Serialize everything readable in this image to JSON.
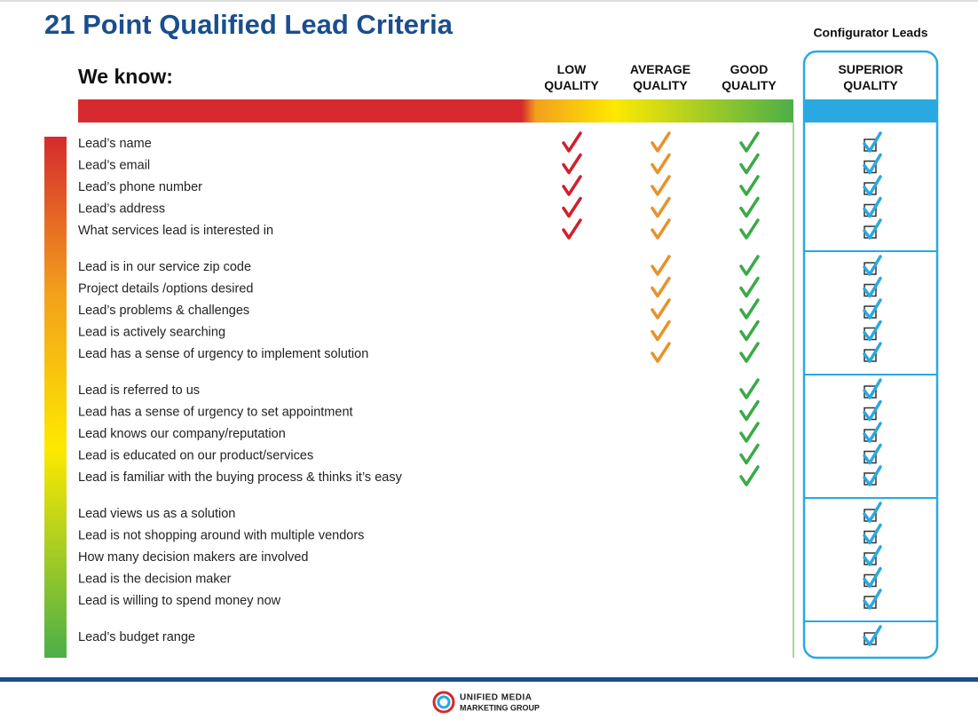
{
  "header": {
    "title": "21 Point Qualified Lead Criteria",
    "note": "Configurator Leads",
    "we_know": "We know:"
  },
  "columns": [
    {
      "label": "LOW QUALITY",
      "color": "#d0202e"
    },
    {
      "label": "AVERAGE QUALITY",
      "color": "#e8922a"
    },
    {
      "label": "GOOD QUALITY",
      "color": "#3aaa48"
    },
    {
      "label": "SUPERIOR QUALITY",
      "color": "#29a9e0"
    }
  ],
  "groups": [
    {
      "rows": [
        "Lead’s name",
        "Lead’s email",
        "Lead’s phone number",
        "Lead’s address",
        "What services lead is interested in"
      ],
      "checks": [
        true,
        true,
        true,
        true
      ]
    },
    {
      "rows": [
        "Lead is in our service zip code",
        "Project details /options desired",
        "Lead’s problems & challenges",
        "Lead is actively searching",
        "Lead has a sense of urgency to implement solution"
      ],
      "checks": [
        false,
        true,
        true,
        true
      ]
    },
    {
      "rows": [
        "Lead is referred to us",
        "Lead has a sense of urgency to set appointment",
        "Lead knows our company/reputation",
        "Lead is educated on our product/services",
        "Lead is familiar with the buying process & thinks it’s easy"
      ],
      "checks": [
        false,
        false,
        true,
        true
      ]
    },
    {
      "rows": [
        "Lead views us as a solution",
        "Lead is not shopping around with multiple vendors",
        "How many decision makers are involved",
        "Lead is the decision maker",
        "Lead is willing to spend money now"
      ],
      "checks": [
        false,
        false,
        false,
        true
      ]
    },
    {
      "rows": [
        "Lead’s budget range"
      ],
      "checks": [
        false,
        false,
        false,
        true
      ]
    }
  ],
  "footer": {
    "logo_line1": "Unified Media",
    "logo_line2": "Marketing Group"
  }
}
